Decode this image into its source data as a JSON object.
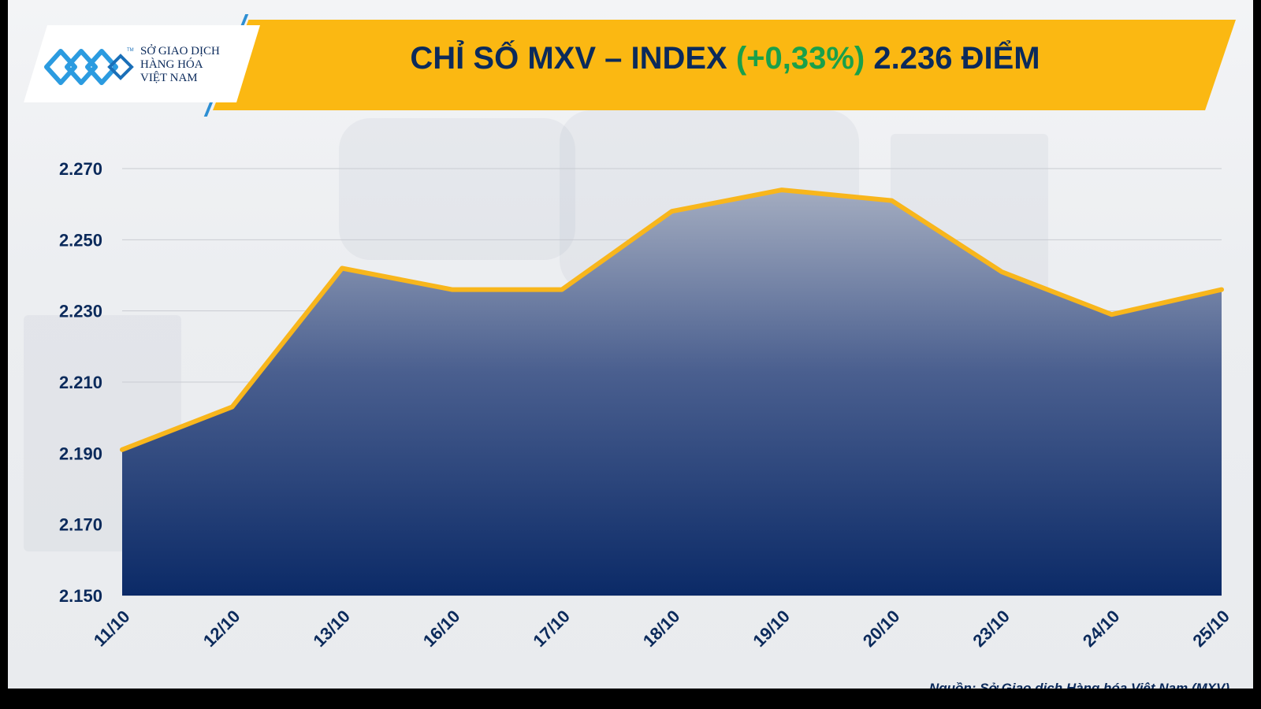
{
  "header": {
    "logo_lines": [
      "SỞ GIAO DỊCH",
      "HÀNG HÓA",
      "VIỆT NAM"
    ],
    "logo_tm": "TM",
    "title_main": "CHỈ SỐ MXV – INDEX ",
    "title_change": "(+0,33%)",
    "title_value": " 2.236 ĐIỂM",
    "colors": {
      "banner": "#fbb812",
      "title": "#0b2a5b",
      "change": "#1aa04a"
    }
  },
  "chart_data": {
    "type": "area",
    "categories": [
      "11/10",
      "12/10",
      "13/10",
      "16/10",
      "17/10",
      "18/10",
      "19/10",
      "20/10",
      "23/10",
      "24/10",
      "25/10"
    ],
    "values": [
      2191,
      2203,
      2242,
      2236,
      2236,
      2258,
      2264,
      2261,
      2241,
      2229,
      2236
    ],
    "y_ticks": [
      2150,
      2170,
      2190,
      2210,
      2230,
      2250,
      2270
    ],
    "y_tick_labels": [
      "2.150",
      "2.170",
      "2.190",
      "2.210",
      "2.230",
      "2.250",
      "2.270"
    ],
    "ylim": [
      2150,
      2270
    ],
    "title": "CHỈ SỐ MXV – INDEX (+0,33%) 2.236 ĐIỂM",
    "grid": true,
    "line_color": "#f8b61c",
    "fill_top_color": "#a3acc0",
    "fill_bottom_color": "#0b2a67"
  },
  "footer": {
    "source": "Nguồn: Sở Giao dịch Hàng hóa Việt Nam (MXV)"
  }
}
